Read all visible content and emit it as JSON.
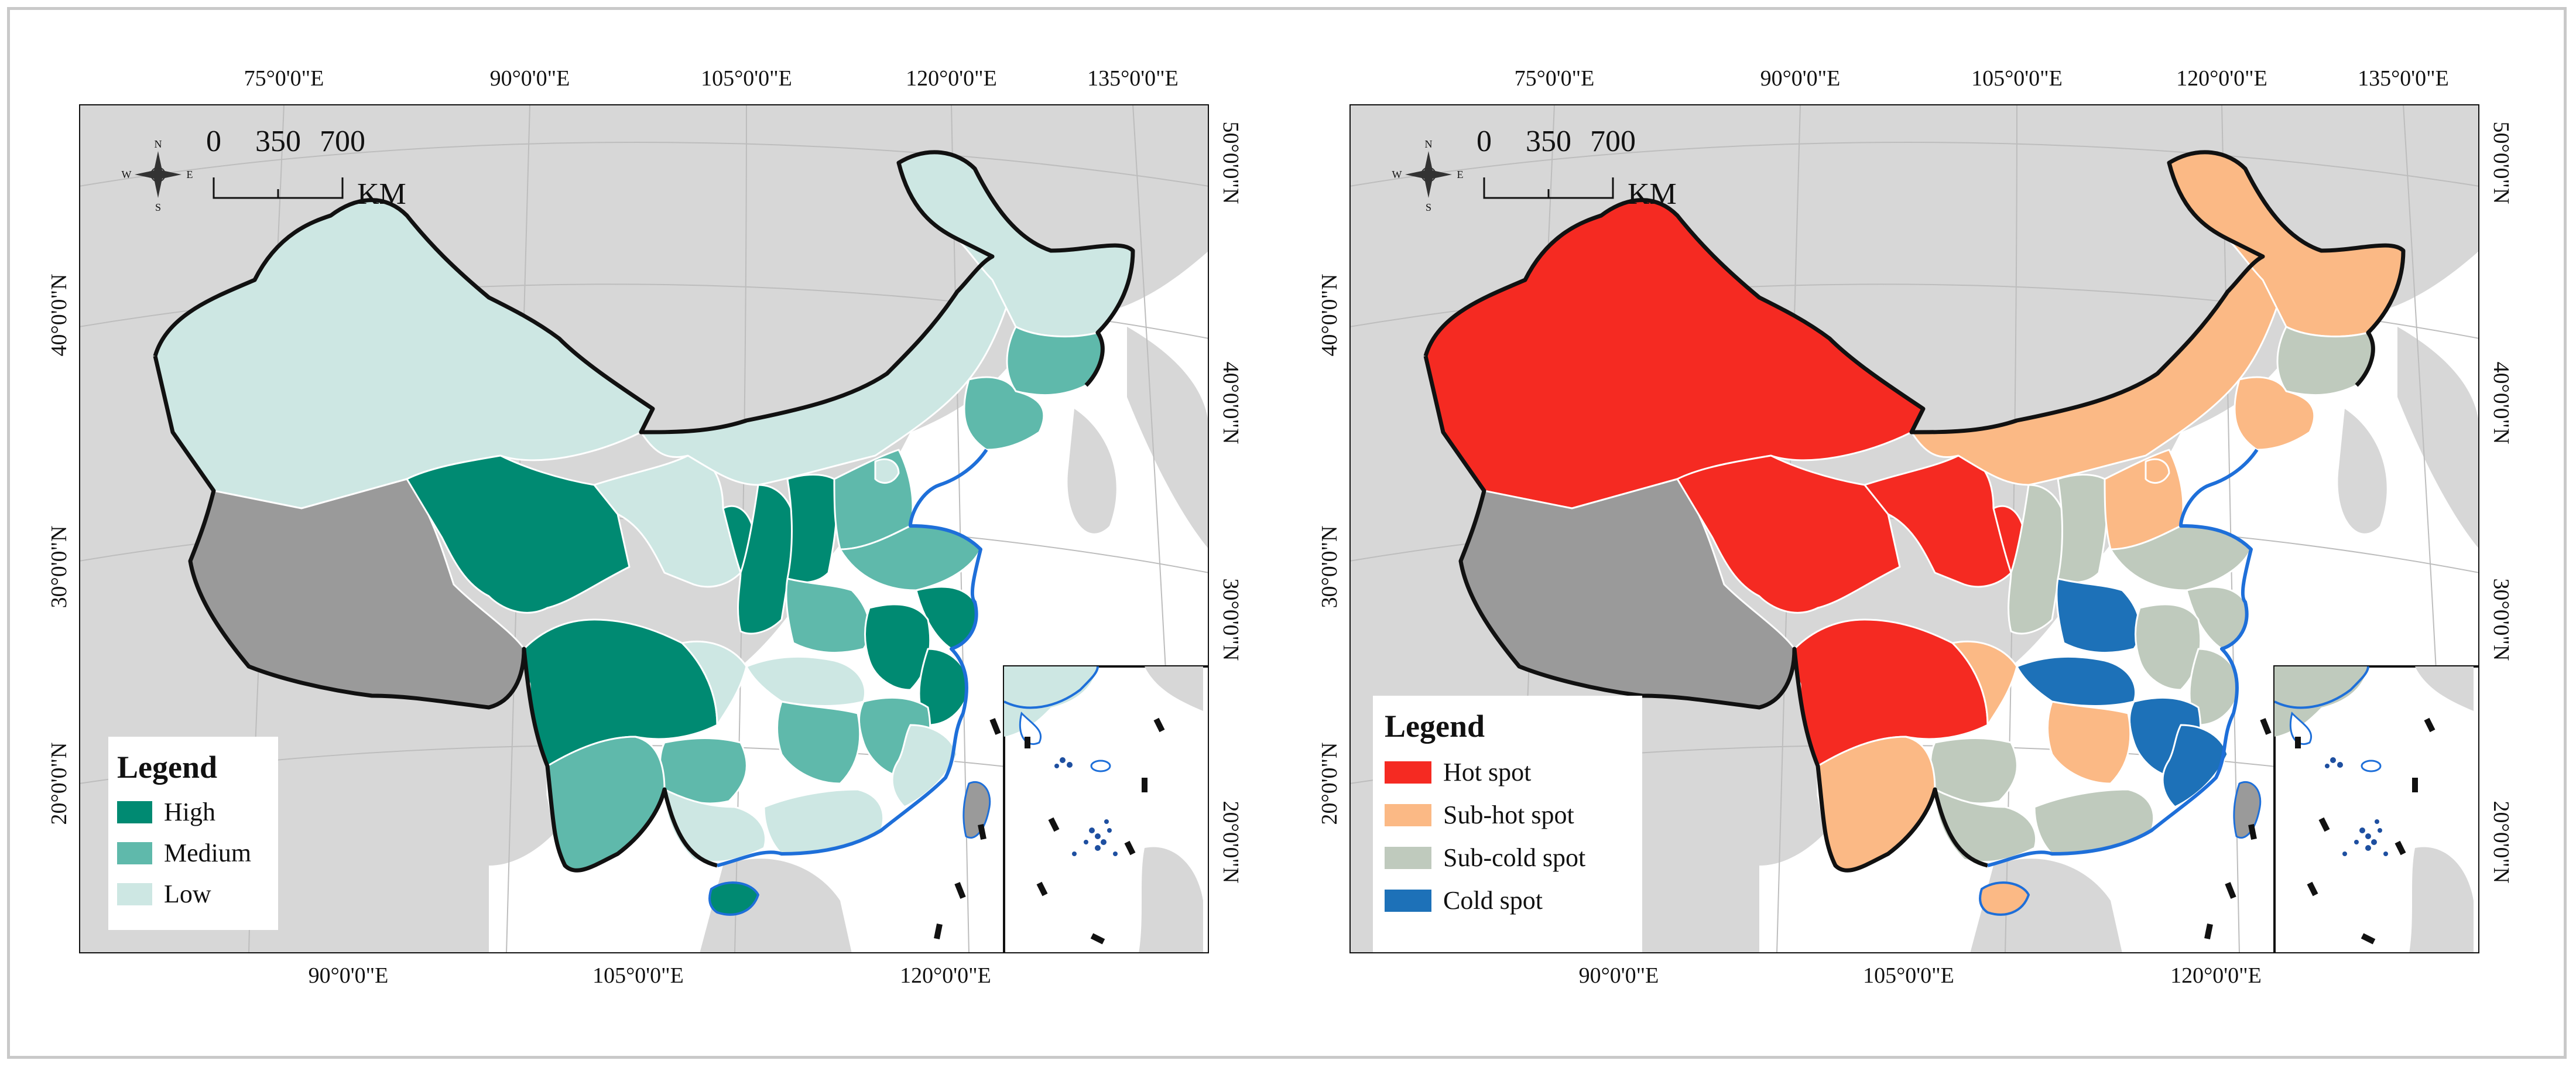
{
  "colors": {
    "background_land": "#d7d7d7",
    "sea": "#ffffff",
    "excluded_region": "#9a9a9a",
    "boundary": "#111111",
    "coast": "#1e6fd9",
    "map1": {
      "High": "#008a72",
      "Medium": "#5fb9ab",
      "Low": "#cde7e3"
    },
    "map2": {
      "Hot spot": "#f52a22",
      "Sub-hot spot": "#fbb985",
      "Sub-cold spot": "#bfcabd",
      "Cold spot": "#1d71b8"
    }
  },
  "maps": [
    {
      "id": "left",
      "top_ticks": [
        "75°0'0\"E",
        "90°0'0\"E",
        "105°0'0\"E",
        "120°0'0\"E",
        "135°0'0\"E"
      ],
      "bottom_ticks": [
        "90°0'0\"E",
        "105°0'0\"E",
        "120°0'0\"E"
      ],
      "left_ticks": [
        "40°0'0\"N",
        "30°0'0\"N",
        "20°0'0\"N"
      ],
      "right_ticks": [
        "50°0'0\"N",
        "40°0'0\"N",
        "30°0'0\"N",
        "20°0'0\"N"
      ],
      "scale": {
        "labels": [
          "0",
          "350",
          "700"
        ],
        "unit": "KM"
      },
      "compass": {
        "n": "N",
        "s": "S",
        "e": "E",
        "w": "W"
      },
      "legend": {
        "title": "Legend",
        "items": [
          {
            "label": "High",
            "color": "#008a72"
          },
          {
            "label": "Medium",
            "color": "#5fb9ab"
          },
          {
            "label": "Low",
            "color": "#cde7e3"
          }
        ]
      }
    },
    {
      "id": "right",
      "top_ticks": [
        "75°0'0\"E",
        "90°0'0\"E",
        "105°0'0\"E",
        "120°0'0\"E",
        "135°0'0\"E"
      ],
      "bottom_ticks": [
        "90°0'0\"E",
        "105°0'0\"E",
        "120°0'0\"E"
      ],
      "left_ticks": [
        "40°0'0\"N",
        "30°0'0\"N",
        "20°0'0\"N"
      ],
      "right_ticks": [
        "50°0'0\"N",
        "40°0'0\"N",
        "30°0'0\"N",
        "20°0'0\"N"
      ],
      "scale": {
        "labels": [
          "0",
          "350",
          "700"
        ],
        "unit": "KM"
      },
      "compass": {
        "n": "N",
        "s": "S",
        "e": "E",
        "w": "W"
      },
      "legend": {
        "title": "Legend",
        "items": [
          {
            "label": "Hot spot",
            "color": "#f52a22"
          },
          {
            "label": "Sub-hot spot",
            "color": "#fbb985"
          },
          {
            "label": "Sub-cold spot",
            "color": "#bfcabd"
          },
          {
            "label": "Cold spot",
            "color": "#1d71b8"
          }
        ]
      }
    }
  ]
}
